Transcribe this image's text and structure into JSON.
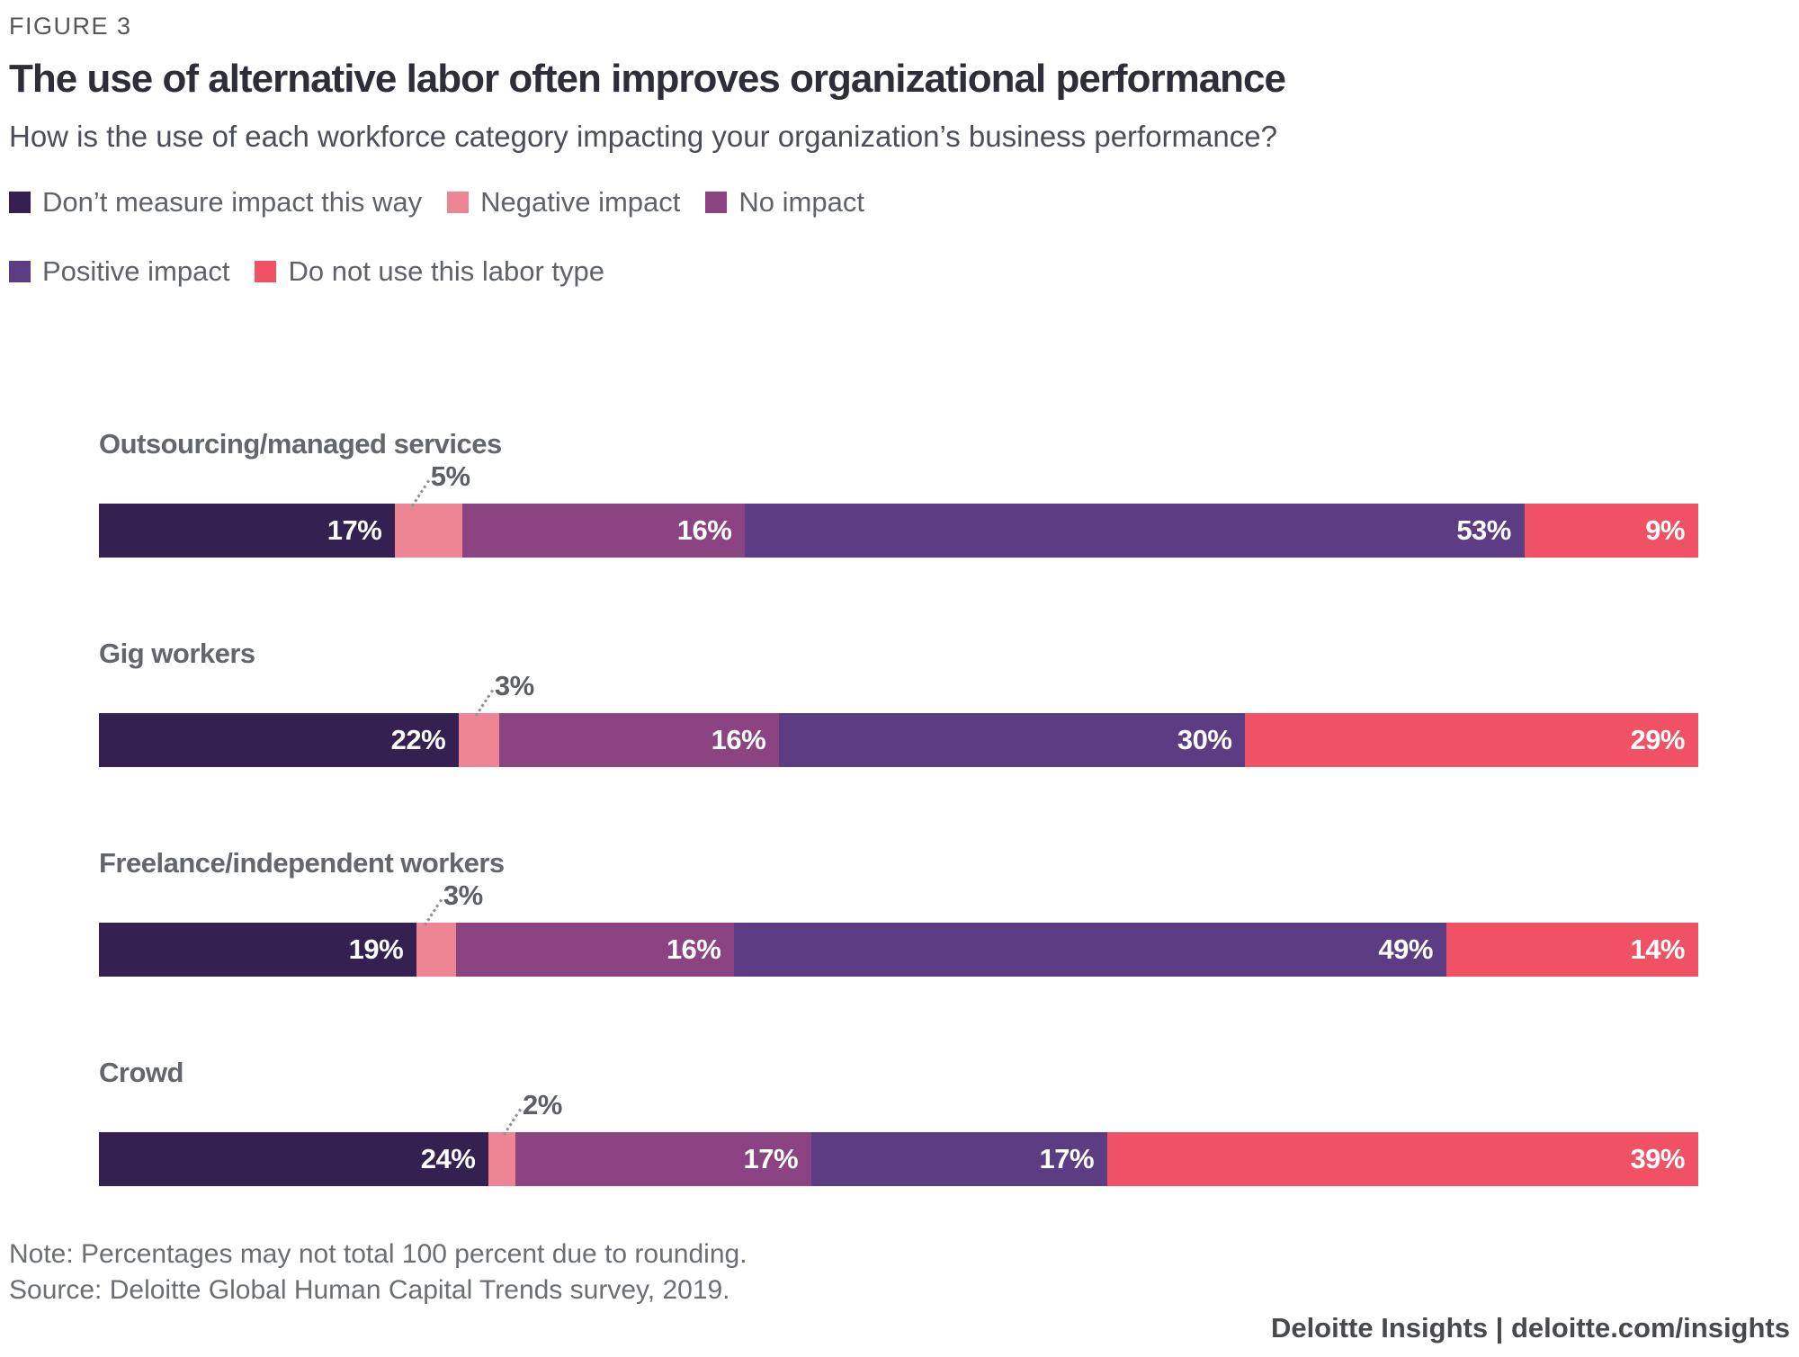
{
  "figure_label": "FIGURE 3",
  "title": "The use of alternative labor often improves organizational performance",
  "subtitle": "How is the use of each workforce category impacting your organization’s business performance?",
  "legend": {
    "rows": [
      [
        {
          "label": "Don’t measure impact this way",
          "color": "#352052"
        },
        {
          "label": "Negative impact",
          "color": "#ee8595"
        },
        {
          "label": "No impact",
          "color": "#8b4382"
        }
      ],
      [
        {
          "label": "Positive impact",
          "color": "#5c3c82"
        },
        {
          "label": "Do not use this labor type",
          "color": "#f05164"
        }
      ]
    ]
  },
  "chart_data": {
    "type": "bar",
    "orientation": "horizontal_stacked",
    "unit": "%",
    "title": "The use of alternative labor often improves organizational performance",
    "subtitle": "How is the use of each workforce category impacting your organization’s business performance?",
    "xlim": [
      0,
      100
    ],
    "categories": [
      "Outsourcing/managed services",
      "Gig workers",
      "Freelance/independent workers",
      "Crowd"
    ],
    "series": [
      {
        "name": "Don’t measure impact this way",
        "color": "#352052",
        "values": [
          17,
          22,
          19,
          24
        ]
      },
      {
        "name": "Negative impact",
        "color": "#ee8595",
        "values": [
          5,
          3,
          3,
          2
        ],
        "callout": true
      },
      {
        "name": "No impact",
        "color": "#8b4382",
        "values": [
          16,
          16,
          16,
          17
        ]
      },
      {
        "name": "Positive impact",
        "color": "#5c3c82",
        "values": [
          53,
          30,
          49,
          17
        ]
      },
      {
        "name": "Do not use this labor type",
        "color": "#f05164",
        "values": [
          9,
          29,
          14,
          39
        ]
      }
    ]
  },
  "note": "Note: Percentages may not total 100 percent due to rounding.",
  "source": "Source: Deloitte Global Human Capital Trends survey, 2019.",
  "footer": "Deloitte Insights | deloitte.com/insights"
}
